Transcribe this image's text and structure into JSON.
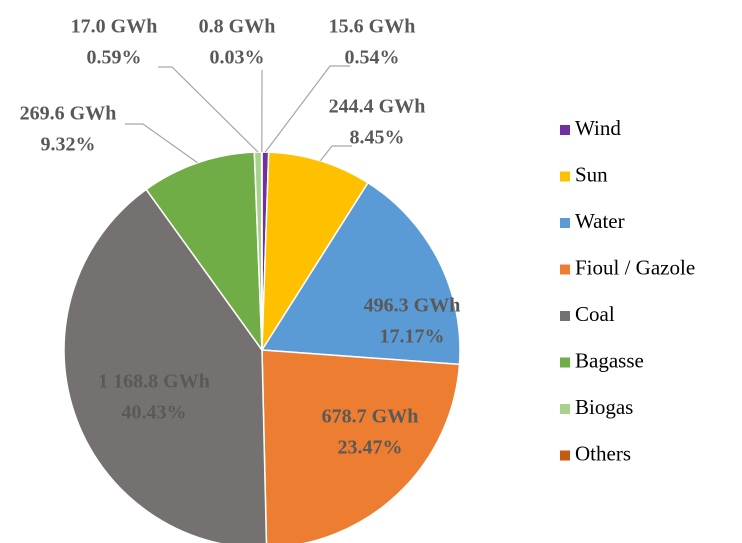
{
  "chart_data": {
    "type": "pie",
    "categories": [
      "Wind",
      "Sun",
      "Water",
      "Fioul / Gazole",
      "Coal",
      "Bagasse",
      "Biogas",
      "Others"
    ],
    "values": [
      15.6,
      244.4,
      496.3,
      678.7,
      1168.8,
      269.6,
      17.0,
      0.8
    ],
    "value_labels": [
      "15.6 GWh",
      "244.4 GWh",
      "496.3 GWh",
      "678.7 GWh",
      "1 168.8 GWh",
      "269.6 GWh",
      "17.0 GWh",
      "0.8 GWh"
    ],
    "percentages": [
      0.54,
      8.45,
      17.17,
      23.47,
      40.43,
      9.32,
      0.59,
      0.03
    ],
    "percent_labels": [
      "0.54%",
      "8.45%",
      "17.17%",
      "23.47%",
      "40.43%",
      "9.32%",
      "0.59%",
      "0.03%"
    ],
    "colors": [
      "#7030a0",
      "#ffc000",
      "#5b9bd5",
      "#ed7d31",
      "#767171",
      "#70ad47",
      "#a9d18e",
      "#c55a11"
    ],
    "legend": "right"
  }
}
